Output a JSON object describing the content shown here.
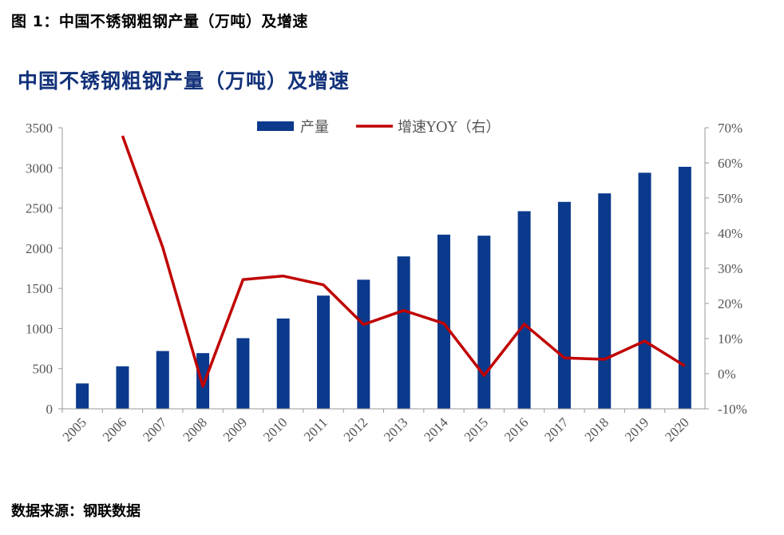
{
  "figure": {
    "caption": "图 1：中国不锈钢粗钢产量（万吨）及增速",
    "source": "数据来源：钢联数据"
  },
  "chart_data": {
    "type": "bar+line",
    "title": "中国不锈钢粗钢产量（万吨）及增速",
    "categories": [
      "2005",
      "2006",
      "2007",
      "2008",
      "2009",
      "2010",
      "2011",
      "2012",
      "2013",
      "2014",
      "2015",
      "2016",
      "2017",
      "2018",
      "2019",
      "2020"
    ],
    "series": [
      {
        "name": "产量",
        "type": "bar",
        "axis": "left",
        "color": "#0b3a8c",
        "values": [
          316,
          530,
          720,
          694,
          880,
          1125,
          1410,
          1608,
          1898,
          2169,
          2156,
          2461,
          2577,
          2683,
          2940,
          3014
        ]
      },
      {
        "name": "增速YOY（右）",
        "type": "line",
        "axis": "right",
        "color": "#c00000",
        "values": [
          null,
          67.7,
          36.0,
          -3.6,
          26.8,
          27.8,
          25.3,
          14.0,
          18.0,
          14.3,
          -0.5,
          14.1,
          4.5,
          4.1,
          9.3,
          2.2
        ]
      }
    ],
    "left_axis": {
      "ylim": [
        0,
        3500
      ],
      "ticks": [
        "0",
        "500",
        "1000",
        "1500",
        "2000",
        "2500",
        "3000",
        "3500"
      ]
    },
    "right_axis": {
      "ylim": [
        -10,
        70
      ],
      "ticks": [
        "-10%",
        "0%",
        "10%",
        "20%",
        "30%",
        "40%",
        "50%",
        "60%",
        "70%"
      ]
    },
    "legend_position": "top-center",
    "grid": false
  }
}
